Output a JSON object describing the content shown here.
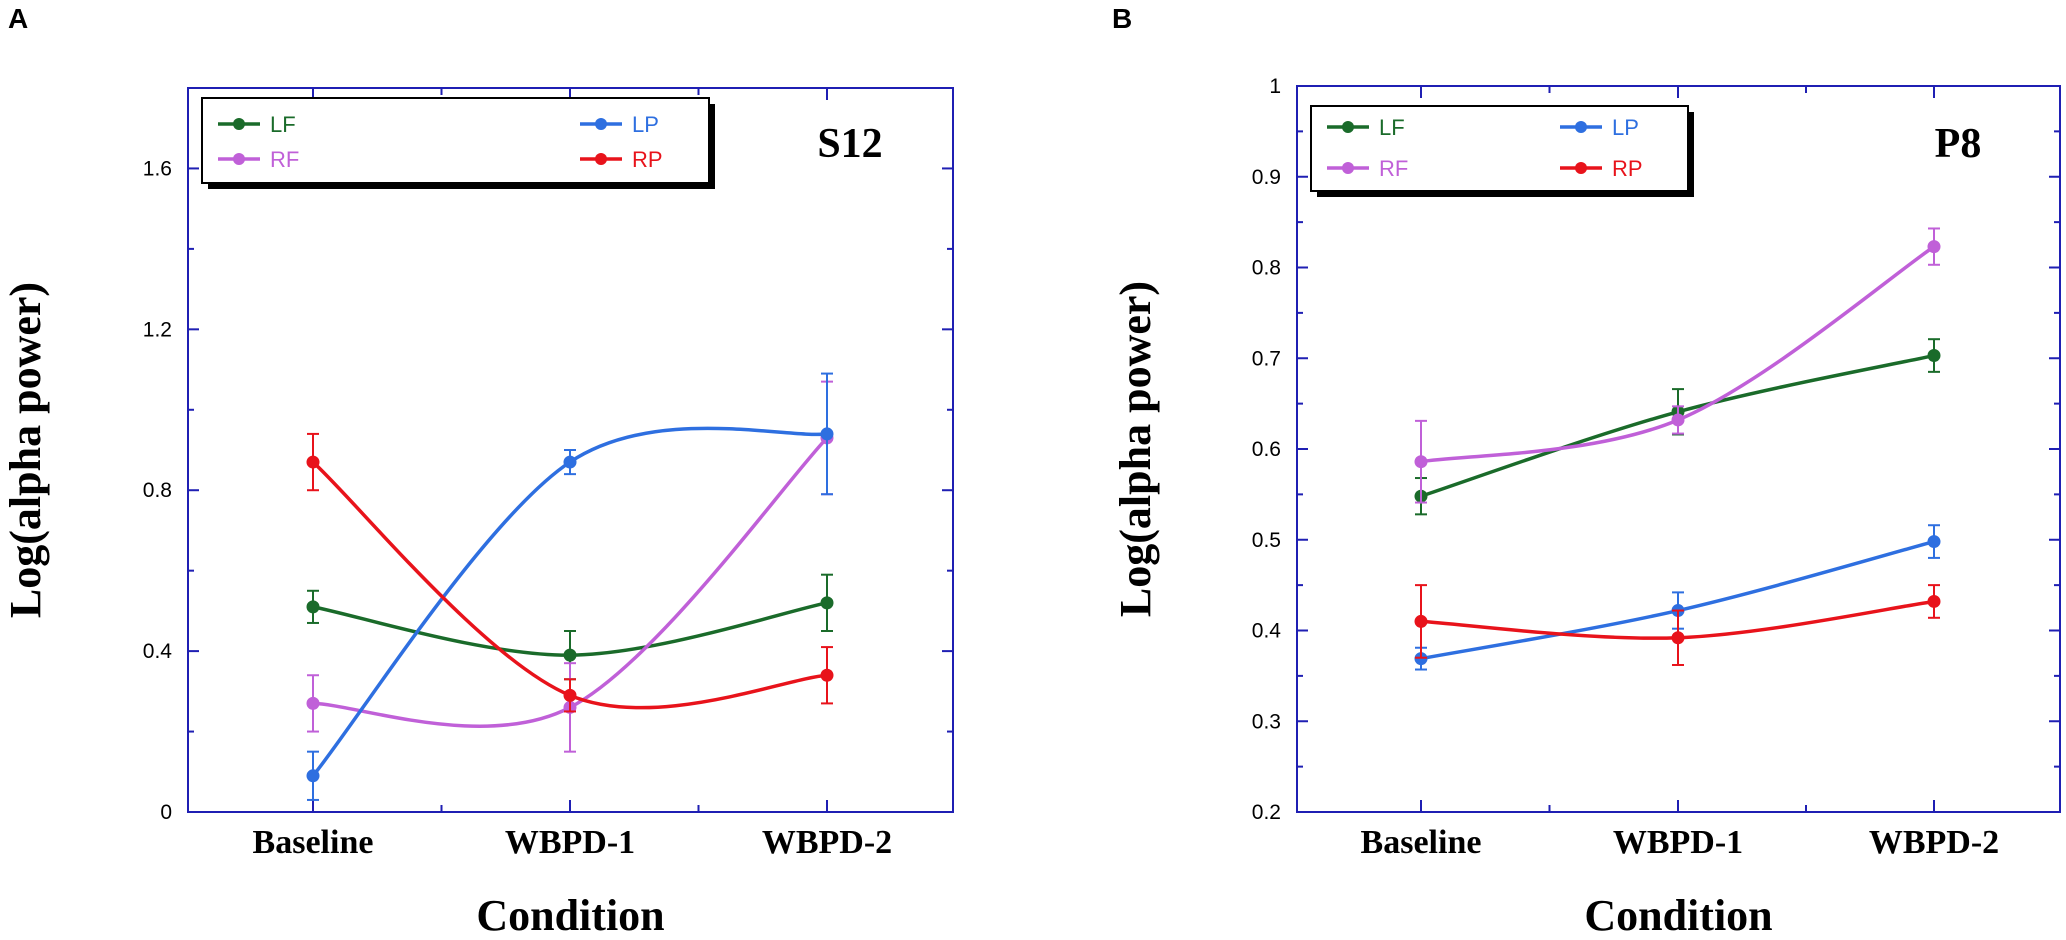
{
  "chart_data": [
    {
      "type": "line",
      "panel_label": "A",
      "annotation": "S12",
      "xlabel": "Condition",
      "ylabel": "Log(alpha power)",
      "categories": [
        "Baseline",
        "WBPD-1",
        "WBPD-2"
      ],
      "ylim": [
        0,
        1.8
      ],
      "yticks": [
        0,
        0.4,
        0.8,
        1.2,
        1.6
      ],
      "ytick_labels": [
        "0",
        "0.4",
        "0.8",
        "1.2",
        "1.6"
      ],
      "legend_position": "top-left",
      "series": [
        {
          "name": "LF",
          "color": "#1a6b2a",
          "values": [
            0.51,
            0.39,
            0.52
          ],
          "errors": [
            0.04,
            0.06,
            0.07
          ]
        },
        {
          "name": "RF",
          "color": "#c060d8",
          "values": [
            0.27,
            0.26,
            0.93
          ],
          "errors": [
            0.07,
            0.11,
            0.14
          ]
        },
        {
          "name": "LP",
          "color": "#2e6fe0",
          "values": [
            0.09,
            0.87,
            0.94
          ],
          "errors": [
            0.06,
            0.03,
            0.15
          ]
        },
        {
          "name": "RP",
          "color": "#e8131b",
          "values": [
            0.87,
            0.29,
            0.34
          ],
          "errors": [
            0.07,
            0.04,
            0.07
          ]
        }
      ]
    },
    {
      "type": "line",
      "panel_label": "B",
      "annotation": "P8",
      "xlabel": "Condition",
      "ylabel": "Log(alpha power)",
      "categories": [
        "Baseline",
        "WBPD-1",
        "WBPD-2"
      ],
      "ylim": [
        0.2,
        1.0
      ],
      "yticks": [
        0.2,
        0.3,
        0.4,
        0.5,
        0.6,
        0.7,
        0.8,
        0.9,
        1.0
      ],
      "ytick_labels": [
        "0.2",
        "0.3",
        "0.4",
        "0.5",
        "0.6",
        "0.7",
        "0.8",
        "0.9",
        "1"
      ],
      "legend_position": "top-left",
      "series": [
        {
          "name": "LF",
          "color": "#1a6b2a",
          "values": [
            0.548,
            0.641,
            0.703
          ],
          "errors": [
            0.02,
            0.025,
            0.018
          ]
        },
        {
          "name": "RF",
          "color": "#c060d8",
          "values": [
            0.586,
            0.632,
            0.823
          ],
          "errors": [
            0.045,
            0.015,
            0.02
          ]
        },
        {
          "name": "LP",
          "color": "#2e6fe0",
          "values": [
            0.369,
            0.422,
            0.498
          ],
          "errors": [
            0.012,
            0.02,
            0.018
          ]
        },
        {
          "name": "RP",
          "color": "#e8131b",
          "values": [
            0.41,
            0.392,
            0.432
          ],
          "errors": [
            0.04,
            0.03,
            0.018
          ]
        }
      ]
    }
  ]
}
